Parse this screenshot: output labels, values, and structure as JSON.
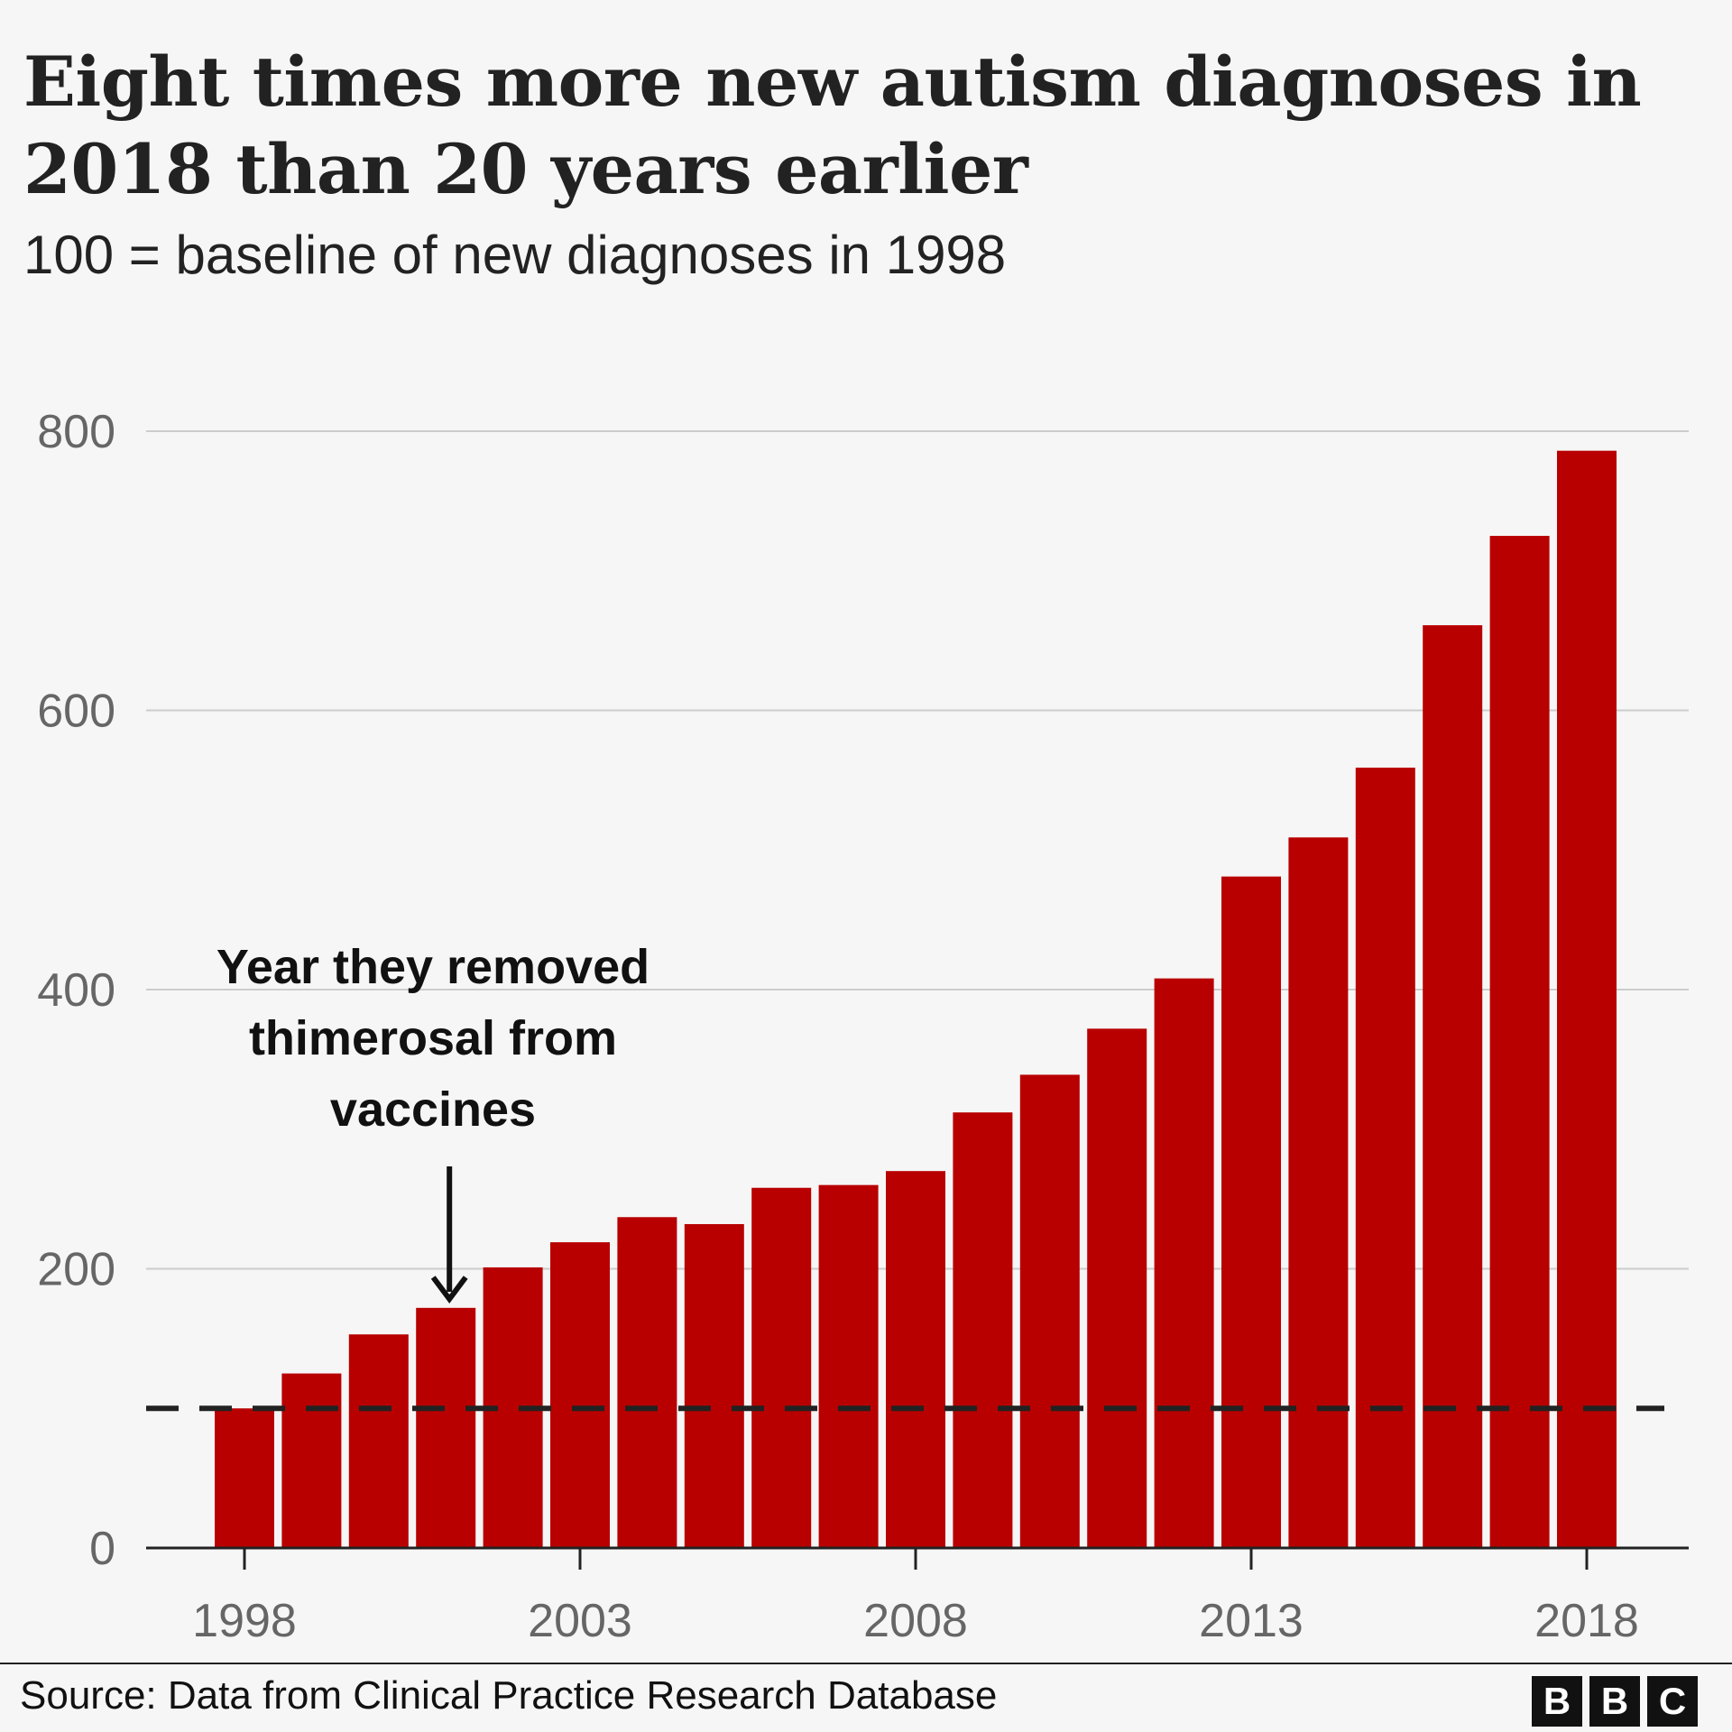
{
  "header": {
    "title": "Eight times more new autism diagnoses in 2018 than 20 years earlier",
    "subtitle": "100 = baseline of new diagnoses in 1998"
  },
  "chart_data": {
    "type": "bar",
    "title": "Eight times more new autism diagnoses in 2018 than 20 years earlier",
    "subtitle": "100 = baseline of new diagnoses in 1998",
    "xlabel": "",
    "ylabel": "",
    "categories": [
      "1998",
      "1999",
      "2000",
      "2001",
      "2002",
      "2003",
      "2004",
      "2005",
      "2006",
      "2007",
      "2008",
      "2009",
      "2010",
      "2011",
      "2012",
      "2013",
      "2014",
      "2015",
      "2016",
      "2017",
      "2018"
    ],
    "values": [
      100,
      125,
      153,
      172,
      201,
      219,
      237,
      232,
      258,
      260,
      270,
      312,
      339,
      372,
      408,
      481,
      509,
      559,
      661,
      725,
      786
    ],
    "ylim": [
      0,
      800
    ],
    "yticks": [
      0,
      200,
      400,
      600,
      800
    ],
    "ytick_labels": [
      "0",
      "200",
      "400",
      "600",
      "800"
    ],
    "xticks": [
      "1998",
      "2003",
      "2008",
      "2013",
      "2018"
    ],
    "grid": true,
    "baseline": {
      "value": 100,
      "style": "dashed"
    },
    "bar_color": "#b80000",
    "annotation": {
      "lines": [
        "Year they removed",
        "thimerosal from",
        "vaccines"
      ],
      "target_category": "2001"
    }
  },
  "footer": {
    "source": "Source: Data from Clinical Practice Research Database",
    "logo_letters": [
      "B",
      "B",
      "C"
    ]
  }
}
